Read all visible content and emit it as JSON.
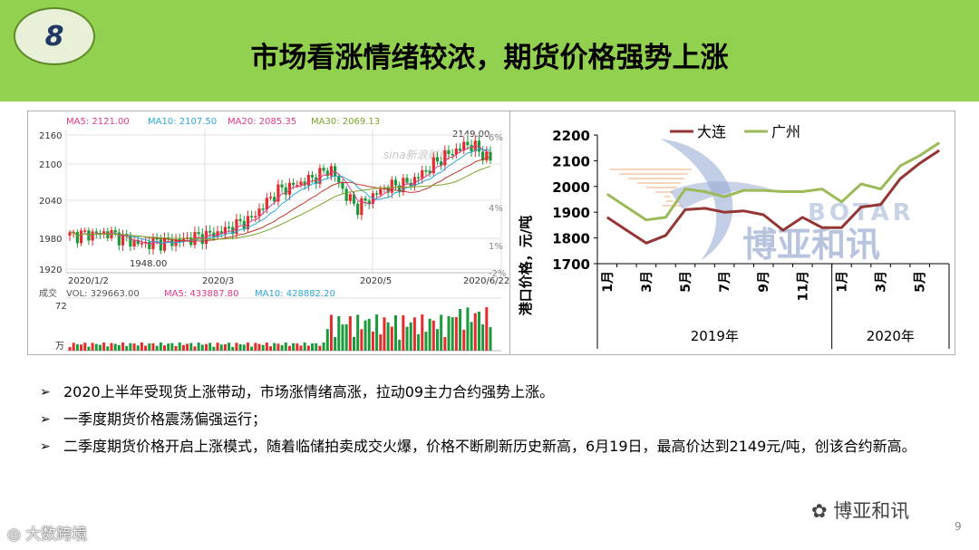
{
  "slide": {
    "number": "8",
    "title": "市场看涨情绪较浓，期货价格强势上涨",
    "page_number": "9"
  },
  "kline": {
    "ma_labels": [
      {
        "text": "MA5: 2121.00",
        "color": "#e0398a"
      },
      {
        "text": "MA10: 2107.50",
        "color": "#2aa7d8"
      },
      {
        "text": "MA20: 2085.35",
        "color": "#e0398a"
      },
      {
        "text": "MA30: 2069.13",
        "color": "#7aa52a"
      }
    ],
    "y_ticks": [
      "2160",
      "2100",
      "2040",
      "1980",
      "1920"
    ],
    "pct_ticks": [
      "6%",
      "4%",
      "1%",
      "-2%"
    ],
    "x_dates": [
      "2020/1/2",
      "2020/3",
      "2020/5",
      "2020/6/22"
    ],
    "high_label": "2149.00",
    "low_label": "1948.00",
    "watermark": "sina新浪财经",
    "volume_labels": [
      {
        "text": "成交",
        "color": "#555555"
      },
      {
        "text": "VOL: 329663.00",
        "color": "#555555"
      },
      {
        "text": "MA5: 433887.80",
        "color": "#e0398a"
      },
      {
        "text": "MA10: 428882.20",
        "color": "#2aa7d8"
      }
    ],
    "volume_top": "72",
    "volume_unit": "万"
  },
  "port_chart": {
    "ylabel": "港口价格，元/吨",
    "legend": [
      {
        "name": "大连",
        "color": "#943634"
      },
      {
        "name": "广州",
        "color": "#9bbb59"
      }
    ],
    "logo_text_en": "BOTAR",
    "logo_text_cn": "博亚和讯"
  },
  "chart_data": {
    "type": "line",
    "x": [
      "1月",
      "2月",
      "3月",
      "4月",
      "5月",
      "6月",
      "7月",
      "8月",
      "9月",
      "10月",
      "11月",
      "12月",
      "1月",
      "2月",
      "3月",
      "4月",
      "5月",
      "6月"
    ],
    "x_tick_labels": [
      "1月",
      "3月",
      "5月",
      "7月",
      "9月",
      "11月",
      "1月",
      "3月",
      "5月"
    ],
    "x_groups": [
      {
        "label": "2019年",
        "span": 12
      },
      {
        "label": "2020年",
        "span": 6
      }
    ],
    "ylim": [
      1700,
      2200
    ],
    "yticks": [
      1700,
      1800,
      1900,
      2000,
      2100,
      2200
    ],
    "ylabel": "港口价格，元/吨",
    "series": [
      {
        "name": "大连",
        "color": "#943634",
        "values": [
          1880,
          1830,
          1780,
          1810,
          1910,
          1915,
          1900,
          1905,
          1890,
          1830,
          1880,
          1840,
          1840,
          1920,
          1930,
          2030,
          2090,
          2140
        ]
      },
      {
        "name": "广州",
        "color": "#9bbb59",
        "values": [
          1970,
          1920,
          1870,
          1880,
          1990,
          1980,
          1960,
          1985,
          1985,
          1980,
          1980,
          1990,
          1940,
          2010,
          1990,
          2080,
          2120,
          2170
        ]
      }
    ]
  },
  "bullets": [
    "2020上半年受现货上涨带动，市场涨情绪高涨，拉动09主力合约强势上涨。",
    "一季度期货价格震荡偏强运行；",
    "二季度期货价格开启上涨模式，随着临储拍卖成交火爆，价格不断刷新历史新高，6月19日，最高价达到2149元/吨，创该合约新高。"
  ],
  "watermarks": {
    "bottom_left": "大数跨境",
    "bottom_right": "博亚和讯"
  }
}
